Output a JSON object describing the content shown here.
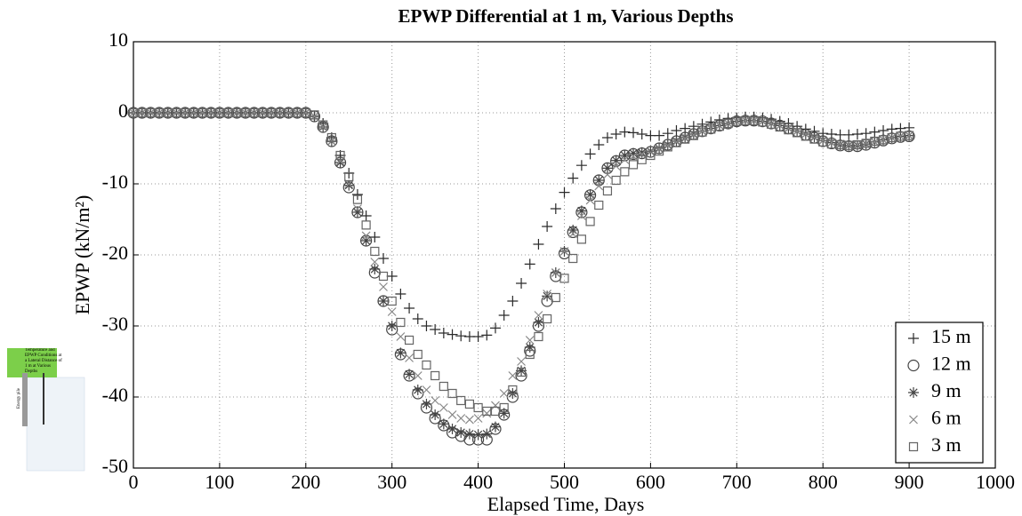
{
  "chart_data": {
    "type": "scatter",
    "title": "EPWP Differential at 1 m, Various Depths",
    "xlabel": "Elapsed Time, Days",
    "ylabel": "EPWP (kN/m²)",
    "xlim": [
      0,
      1000
    ],
    "xticks": [
      0,
      100,
      200,
      300,
      400,
      500,
      600,
      700,
      800,
      900,
      1000
    ],
    "ylim": [
      -50,
      10
    ],
    "yticks": [
      -50,
      -40,
      -30,
      -20,
      -10,
      0,
      10
    ],
    "grid": true,
    "legend": "lower right",
    "inset_text": "Temperature and EPWP Conditions at a Lateral Distance of 1 m at Various Depths",
    "inset_label": "Energy pile",
    "x": [
      0,
      10,
      20,
      30,
      40,
      50,
      60,
      70,
      80,
      90,
      100,
      110,
      120,
      130,
      140,
      150,
      160,
      170,
      180,
      190,
      200,
      210,
      220,
      230,
      240,
      250,
      260,
      270,
      280,
      290,
      300,
      310,
      320,
      330,
      340,
      350,
      360,
      370,
      380,
      390,
      400,
      410,
      420,
      430,
      440,
      450,
      460,
      470,
      480,
      490,
      500,
      510,
      520,
      530,
      540,
      550,
      560,
      570,
      580,
      590,
      600,
      610,
      620,
      630,
      640,
      650,
      660,
      670,
      680,
      690,
      700,
      710,
      720,
      730,
      740,
      750,
      760,
      770,
      780,
      790,
      800,
      810,
      820,
      830,
      840,
      850,
      860,
      870,
      880,
      890,
      900
    ],
    "series": [
      {
        "name": "15 m",
        "marker": "plus",
        "color": "#2a2a2a",
        "values": [
          0,
          0,
          0,
          0,
          0,
          0,
          0,
          0,
          0,
          0,
          0,
          0,
          0,
          0,
          0,
          0,
          0,
          0,
          0,
          0,
          0,
          -0.5,
          -1.5,
          -3.5,
          -6,
          -8.5,
          -11.5,
          -14.5,
          -17.5,
          -20.5,
          -23,
          -25.5,
          -27.5,
          -29,
          -30,
          -30.5,
          -31,
          -31.2,
          -31.4,
          -31.5,
          -31.5,
          -31.3,
          -30.3,
          -28.5,
          -26.5,
          -24,
          -21.3,
          -18.5,
          -16,
          -13.5,
          -11.2,
          -9.2,
          -7.4,
          -5.8,
          -4.5,
          -3.5,
          -3,
          -2.7,
          -2.8,
          -3,
          -3.2,
          -3.2,
          -2.9,
          -2.5,
          -2.2,
          -1.9,
          -1.6,
          -1.3,
          -1,
          -0.8,
          -0.7,
          -0.6,
          -0.6,
          -0.7,
          -0.9,
          -1.2,
          -1.5,
          -1.9,
          -2.3,
          -2.6,
          -2.9,
          -3,
          -3.1,
          -3.1,
          -3,
          -2.9,
          -2.7,
          -2.5,
          -2.3,
          -2.2,
          -2.1
        ]
      },
      {
        "name": "12 m",
        "marker": "circle",
        "color": "#444444",
        "values": [
          0,
          0,
          0,
          0,
          0,
          0,
          0,
          0,
          0,
          0,
          0,
          0,
          0,
          0,
          0,
          0,
          0,
          0,
          0,
          0,
          0,
          -0.5,
          -2,
          -4,
          -7,
          -10.5,
          -14,
          -18,
          -22.5,
          -26.5,
          -30.5,
          -34,
          -37,
          -39.5,
          -41.5,
          -43,
          -44,
          -45,
          -45.5,
          -46,
          -46,
          -46,
          -44.5,
          -42.5,
          -40,
          -37,
          -33.5,
          -30,
          -26.5,
          -23,
          -19.8,
          -16.8,
          -14,
          -11.6,
          -9.5,
          -7.8,
          -6.8,
          -6,
          -5.8,
          -5.7,
          -5.5,
          -5,
          -4.5,
          -4,
          -3.5,
          -3,
          -2.6,
          -2.2,
          -1.8,
          -1.5,
          -1.2,
          -1.1,
          -1.1,
          -1.2,
          -1.5,
          -1.8,
          -2.2,
          -2.6,
          -3.1,
          -3.5,
          -4,
          -4.3,
          -4.6,
          -4.7,
          -4.7,
          -4.5,
          -4.2,
          -3.9,
          -3.6,
          -3.4,
          -3.3
        ]
      },
      {
        "name": "9 m",
        "marker": "star",
        "color": "#444444",
        "values": [
          0,
          0,
          0,
          0,
          0,
          0,
          0,
          0,
          0,
          0,
          0,
          0,
          0,
          0,
          0,
          0,
          0,
          0,
          0,
          0,
          0,
          -0.5,
          -2,
          -4,
          -7,
          -10.2,
          -14,
          -18,
          -22,
          -26.5,
          -30,
          -33.8,
          -36.8,
          -39,
          -41,
          -42.5,
          -43.8,
          -44.5,
          -45,
          -45.2,
          -45.3,
          -45.2,
          -44.2,
          -42.3,
          -39.5,
          -36.3,
          -33,
          -29.5,
          -25.8,
          -22.5,
          -19.5,
          -16.5,
          -13.8,
          -11.5,
          -9.5,
          -7.8,
          -6.7,
          -6,
          -5.7,
          -5.6,
          -5.4,
          -5,
          -4.5,
          -4,
          -3.5,
          -3,
          -2.6,
          -2.2,
          -1.8,
          -1.5,
          -1.2,
          -1.1,
          -1.1,
          -1.2,
          -1.5,
          -1.8,
          -2.2,
          -2.6,
          -3,
          -3.4,
          -3.9,
          -4.2,
          -4.5,
          -4.6,
          -4.6,
          -4.4,
          -4.1,
          -3.8,
          -3.5,
          -3.3,
          -3.2
        ]
      },
      {
        "name": "6 m",
        "marker": "cross",
        "color": "#888888",
        "values": [
          0,
          0,
          0,
          0,
          0,
          0,
          0,
          0,
          0,
          0,
          0,
          0,
          0,
          0,
          0,
          0,
          0,
          0,
          0,
          0,
          0,
          -0.5,
          -2,
          -4,
          -6.8,
          -10,
          -13.5,
          -17.3,
          -21,
          -24.5,
          -28,
          -31.5,
          -34.5,
          -37,
          -39,
          -40.5,
          -41.5,
          -42.5,
          -43,
          -43.2,
          -43,
          -42.3,
          -41.2,
          -39.5,
          -37,
          -35,
          -32,
          -28.5,
          -25.5,
          -22.5,
          -19.5,
          -17,
          -14.5,
          -12.3,
          -10.3,
          -8.7,
          -7.5,
          -6.6,
          -6.1,
          -5.8,
          -5.5,
          -5.1,
          -4.6,
          -4.1,
          -3.6,
          -3.1,
          -2.6,
          -2.2,
          -1.8,
          -1.5,
          -1.2,
          -1.1,
          -1.1,
          -1.2,
          -1.5,
          -1.8,
          -2.2,
          -2.6,
          -3,
          -3.5,
          -3.9,
          -4.2,
          -4.4,
          -4.5,
          -4.5,
          -4.3,
          -4.1,
          -3.8,
          -3.5,
          -3.3,
          -3.2
        ]
      },
      {
        "name": "3 m",
        "marker": "square",
        "color": "#666666",
        "values": [
          0,
          0,
          0,
          0,
          0,
          0,
          0,
          0,
          0,
          0,
          0,
          0,
          0,
          0,
          0,
          0,
          0,
          0,
          0,
          0,
          0,
          -0.3,
          -1.7,
          -3.5,
          -6,
          -9,
          -12.2,
          -15.8,
          -19.5,
          -23,
          -26.5,
          -29.5,
          -32,
          -34,
          -35.5,
          -37,
          -38.5,
          -39.5,
          -40.5,
          -41,
          -41.5,
          -42,
          -42,
          -41.5,
          -39,
          -36.5,
          -34,
          -31.5,
          -29,
          -26,
          -23.3,
          -20.5,
          -17.8,
          -15.3,
          -13,
          -11,
          -9.5,
          -8.3,
          -7.3,
          -6.6,
          -6,
          -5.4,
          -4.8,
          -4.2,
          -3.7,
          -3.2,
          -2.7,
          -2.3,
          -1.9,
          -1.5,
          -1.2,
          -1.1,
          -1.1,
          -1.3,
          -1.6,
          -2,
          -2.4,
          -2.8,
          -3.3,
          -3.7,
          -4.1,
          -4.4,
          -4.5,
          -4.6,
          -4.5,
          -4.3,
          -4,
          -3.8,
          -3.5,
          -3.3,
          -3.2
        ]
      }
    ]
  }
}
